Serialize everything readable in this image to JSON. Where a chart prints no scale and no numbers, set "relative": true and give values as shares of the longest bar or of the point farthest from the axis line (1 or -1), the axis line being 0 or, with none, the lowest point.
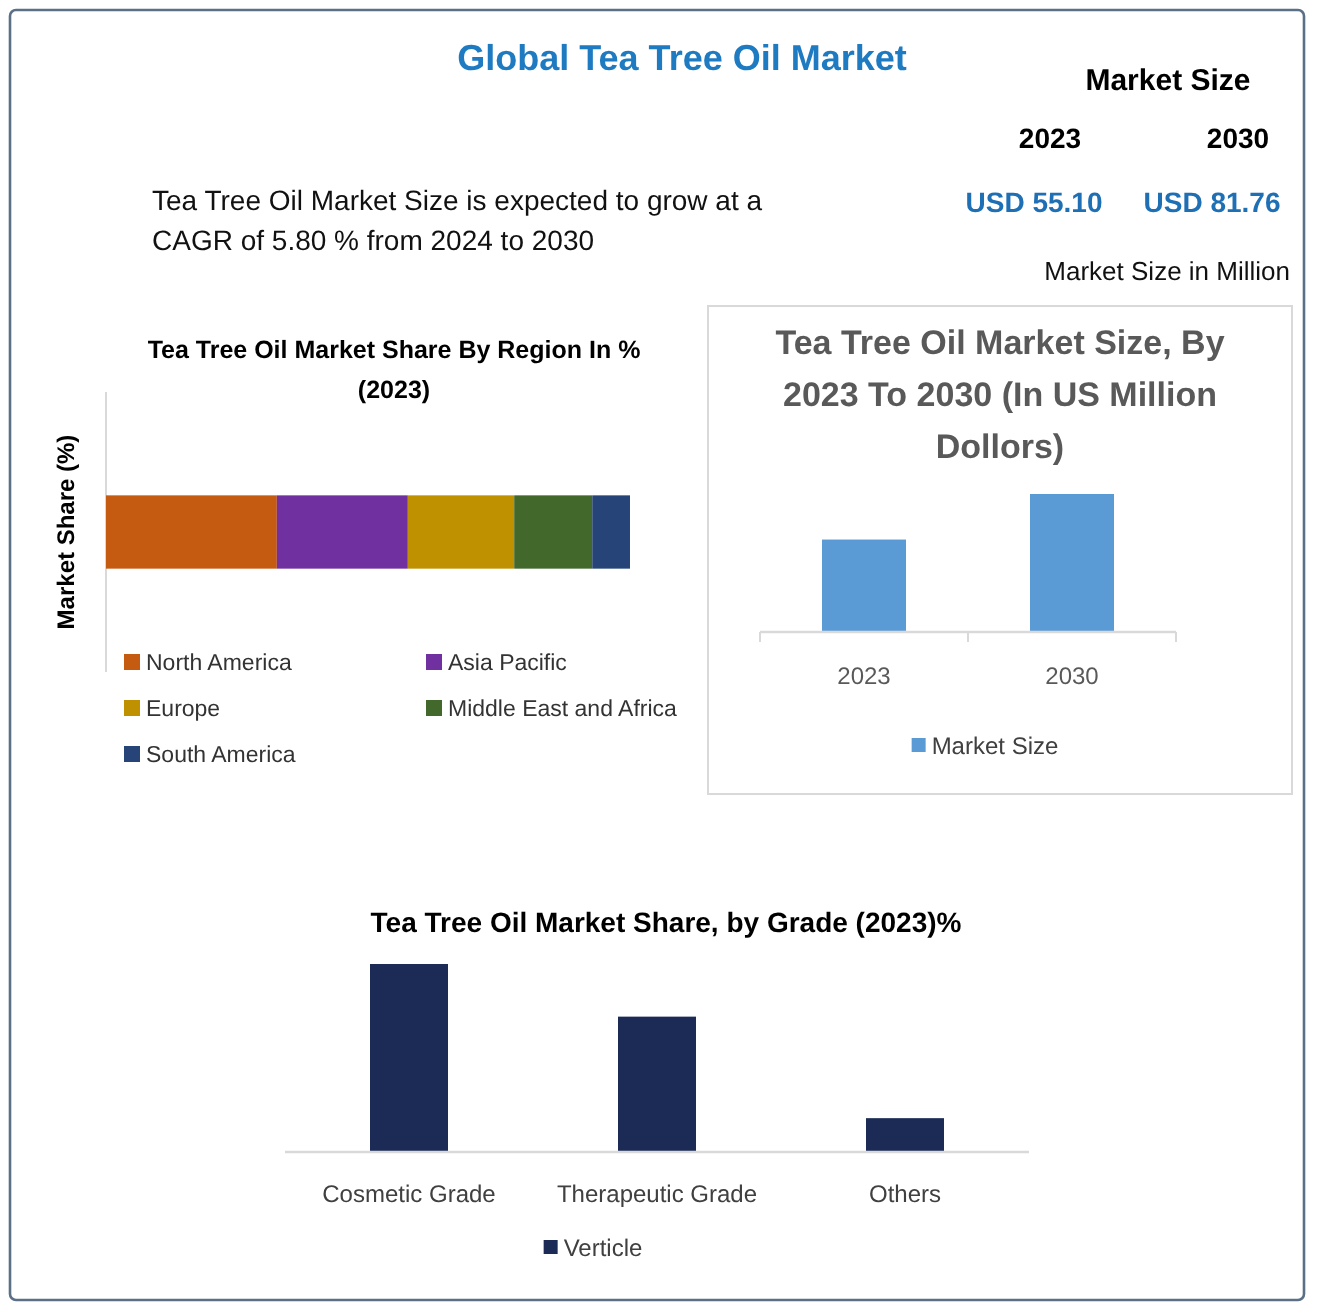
{
  "chart_data": [
    {
      "type": "other",
      "title": "Global Tea Tree Oil Market",
      "annotations": [
        "Market Size",
        "2023",
        "2030",
        "USD 55.10",
        "USD 81.76",
        "Tea Tree Oil Market Size is expected to grow at a CAGR of 5.80 % from 2024 to 2030",
        "Market Size in Million"
      ]
    },
    {
      "type": "bar",
      "title": "Tea Tree Oil Market Share By Region In % (2023)",
      "ylabel": "Market Share (%)",
      "orientation": "horizontal",
      "stacked": true,
      "relative": true,
      "categories": [
        null
      ],
      "series": [
        {
          "name": "North America",
          "color": "#c55a11",
          "values": [
            0.326
          ]
        },
        {
          "name": "Asia Pacific",
          "color": "#7030a0",
          "values": [
            0.25
          ]
        },
        {
          "name": "Europe",
          "color": "#bf9000",
          "values": [
            0.203
          ]
        },
        {
          "name": "Middle East and Africa",
          "color": "#43682b",
          "values": [
            0.149
          ]
        },
        {
          "name": "South America",
          "color": "#264478",
          "values": [
            0.072
          ]
        }
      ],
      "legend": "bottom"
    },
    {
      "type": "bar",
      "title": "Tea Tree Oil Market Size, By 2023 To 2030 (In US Million Dollors)",
      "categories": [
        "2023",
        "2030"
      ],
      "relative": true,
      "series": [
        {
          "name": "Market Size",
          "color": "#5b9bd5",
          "values": [
            0.67,
            1
          ]
        }
      ],
      "legend": "bottom"
    },
    {
      "type": "bar",
      "title": "Tea Tree Oil Market Share, by Grade (2023)%",
      "categories": [
        "Cosmetic Grade",
        "Therapeutic Grade",
        "Others"
      ],
      "relative": true,
      "series": [
        {
          "name": "Verticle",
          "color": "#1b2b55",
          "values": [
            1,
            0.72,
            0.18
          ]
        }
      ],
      "legend": "bottom"
    }
  ]
}
